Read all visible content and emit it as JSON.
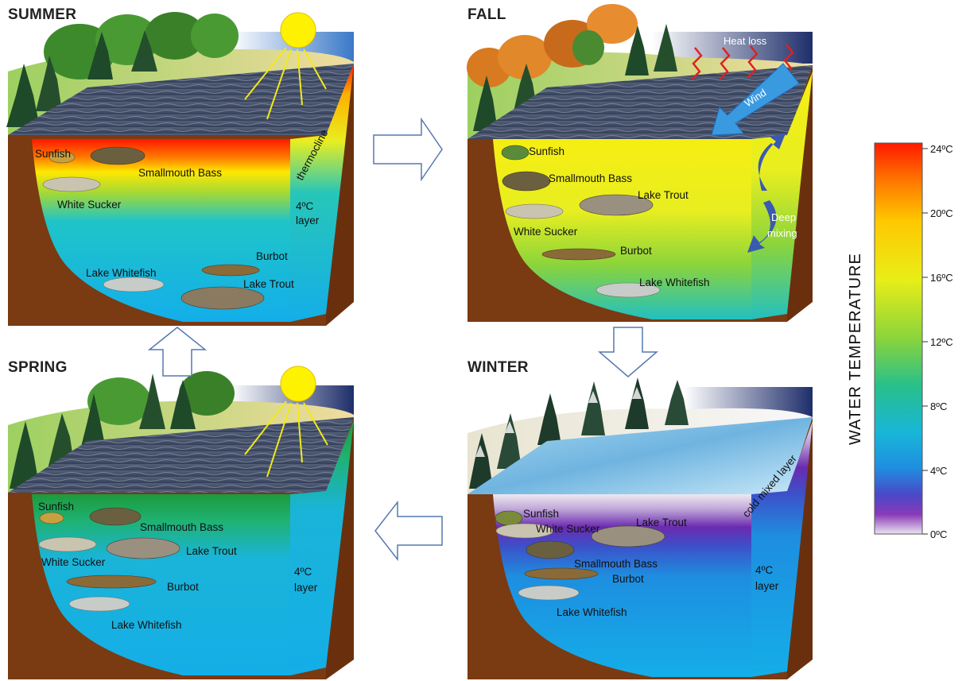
{
  "panels": {
    "summer": {
      "title": "SUMMER",
      "labels": {
        "fish1": "Sunfish",
        "fish2": "Smallmouth Bass",
        "fish3": "White Sucker",
        "fish4": "Burbot",
        "fish5": "Lake Whitefish",
        "fish6": "Lake Trout",
        "layer1": "thermocline",
        "layer2a": "4ºC",
        "layer2b": "layer"
      }
    },
    "fall": {
      "title": "FALL",
      "labels": {
        "fish1": "Sunfish",
        "fish2": "Smallmouth Bass",
        "fish3": "Lake Trout",
        "fish4": "White Sucker",
        "fish5": "Burbot",
        "fish6": "Lake Whitefish",
        "heat": "Heat loss",
        "wind": "Wind",
        "mix1": "Deep",
        "mix2": "mixing"
      }
    },
    "spring": {
      "title": "SPRING",
      "labels": {
        "fish1": "Sunfish",
        "fish2": "Smallmouth Bass",
        "fish3": "Lake Trout",
        "fish4": "White Sucker",
        "fish5": "Burbot",
        "fish6": "Lake Whitefish",
        "layer2a": "4ºC",
        "layer2b": "layer"
      }
    },
    "winter": {
      "title": "WINTER",
      "labels": {
        "fish1": "Sunfish",
        "fish2": "White Sucker",
        "fish3": "Lake Trout",
        "fish4": "Smallmouth Bass",
        "fish5": "Burbot",
        "fish6": "Lake Whitefish",
        "layer1": "cold mixed layer",
        "layer2a": "4ºC",
        "layer2b": "layer"
      }
    }
  },
  "scale": {
    "title": "WATER TEMPERATURE",
    "ticks": [
      "24ºC",
      "20ºC",
      "16ºC",
      "12ºC",
      "8ºC",
      "4ºC",
      "0ºC"
    ]
  },
  "colors": {
    "soil": "#7a3a12",
    "water_surface": "#3f4e6a",
    "cold": "#19b2ea",
    "warm": "#ff2a00",
    "mid": "#f3ea14",
    "ice": "#8fc9e8",
    "arrow_outline": "#5578b0"
  }
}
